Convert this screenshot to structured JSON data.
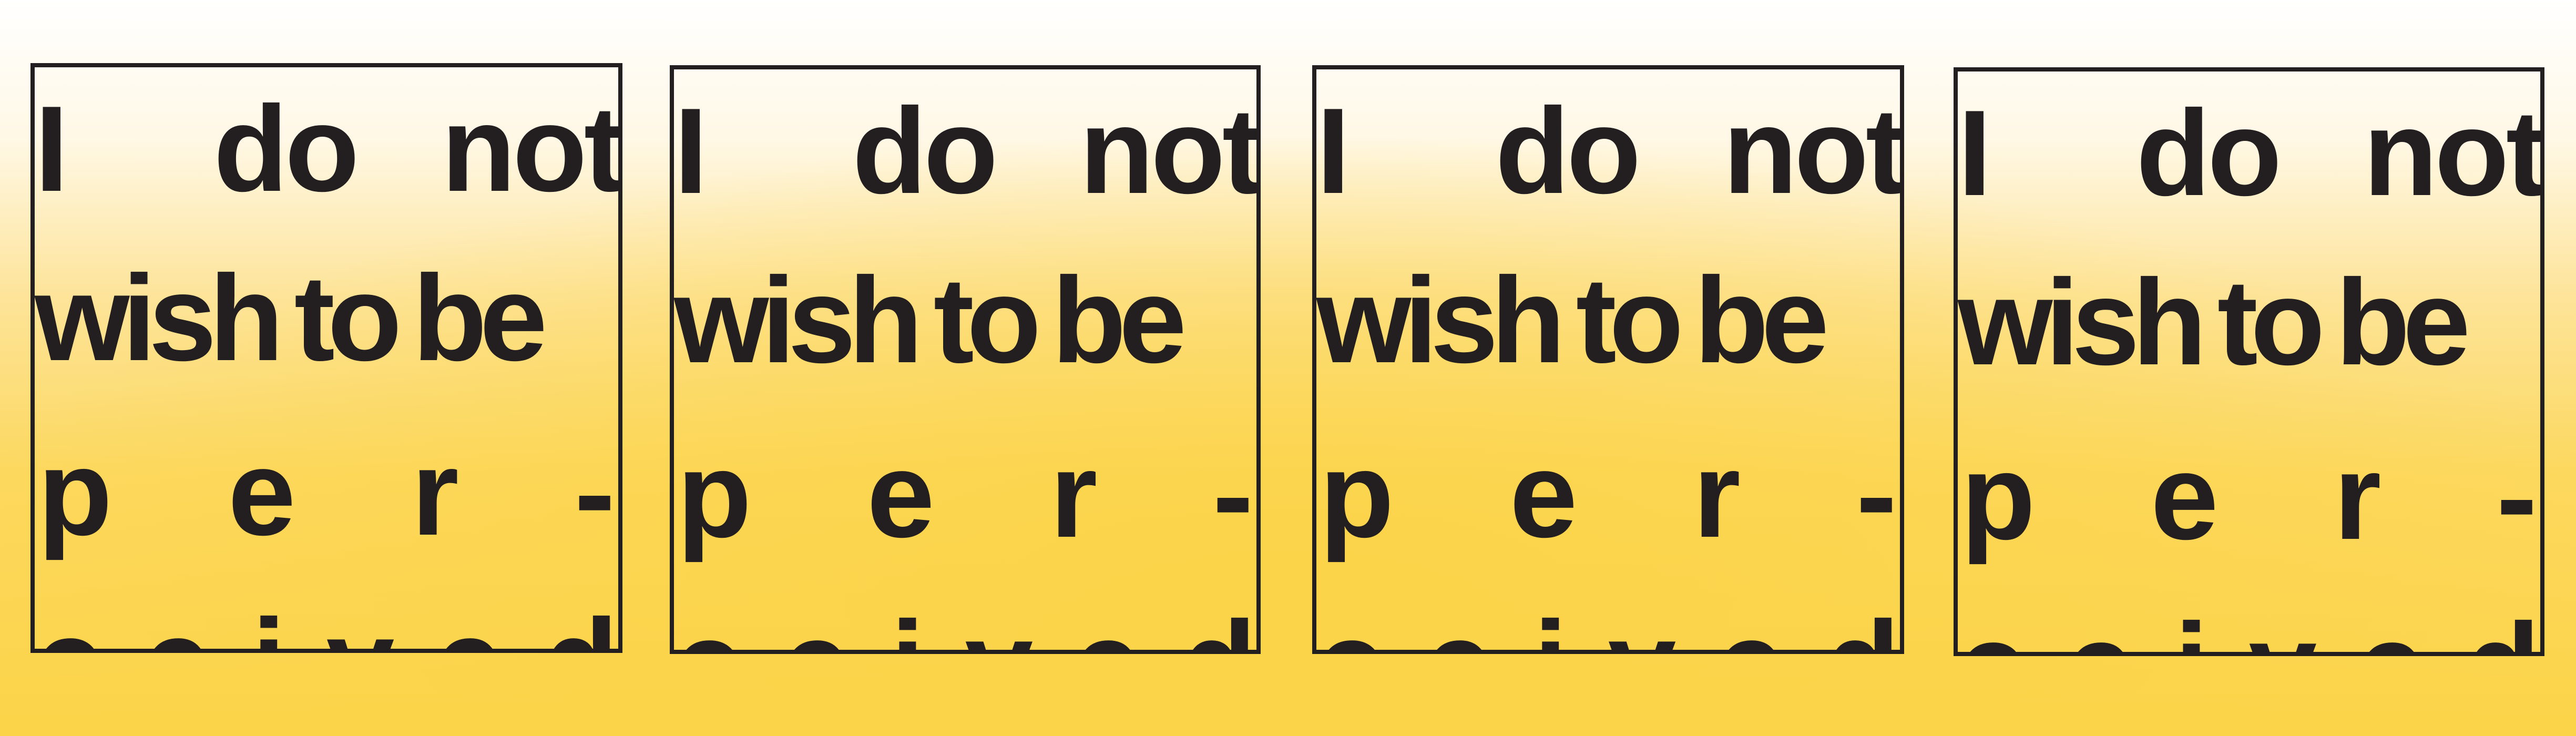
{
  "poem": {
    "line1": [
      "I",
      "do",
      "not"
    ],
    "line2": [
      "wish",
      "to",
      "be"
    ],
    "line3": [
      "p",
      "e",
      "r",
      "-"
    ],
    "line4": [
      "c",
      "e",
      "i",
      "v",
      "e",
      "d"
    ]
  },
  "colors": {
    "ink": "#231f20",
    "background_top": "#ffffff",
    "background_bottom": "#fcd449"
  }
}
